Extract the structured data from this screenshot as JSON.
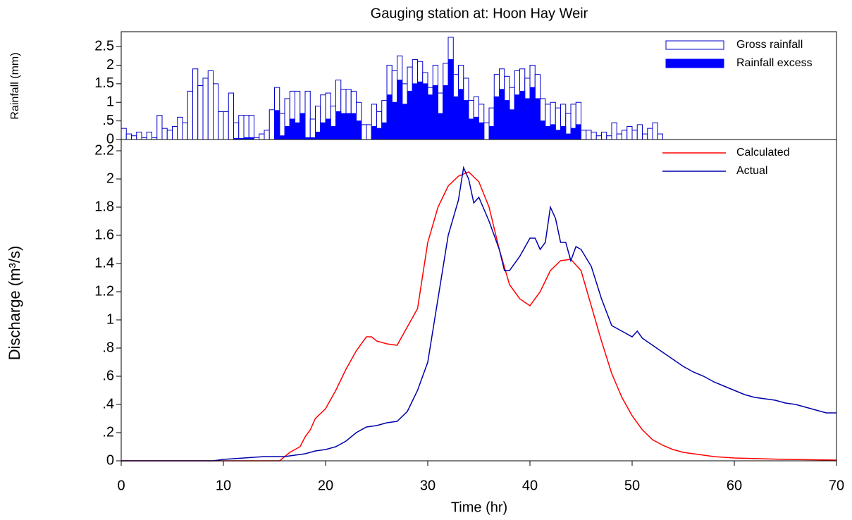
{
  "chart_data": [
    {
      "type": "bar",
      "title": "Gauging station at: Hoon Hay Weir",
      "y_label": "Rainfall (mm)",
      "x": [
        0,
        0.5,
        1,
        1.5,
        2,
        2.5,
        3,
        3.5,
        4,
        4.5,
        5,
        5.5,
        6,
        6.5,
        7,
        7.5,
        8,
        8.5,
        9,
        9.5,
        10,
        10.5,
        11,
        11.5,
        12,
        12.5,
        13,
        13.5,
        14,
        14.5,
        15,
        15.5,
        16,
        16.5,
        17,
        17.5,
        18,
        18.5,
        19,
        19.5,
        20,
        20.5,
        21,
        21.5,
        22,
        22.5,
        23,
        23.5,
        24,
        24.5,
        25,
        25.5,
        26,
        26.5,
        27,
        27.5,
        28,
        28.5,
        29,
        29.5,
        30,
        30.5,
        31,
        31.5,
        32,
        32.5,
        33,
        33.5,
        34,
        34.5,
        35,
        35.5,
        36,
        36.5,
        37,
        37.5,
        38,
        38.5,
        39,
        39.5,
        40,
        40.5,
        41,
        41.5,
        42,
        42.5,
        43,
        43.5,
        44,
        44.5,
        45,
        45.5,
        46,
        46.5,
        47,
        47.5,
        48,
        48.5,
        49,
        49.5,
        50,
        50.5,
        51,
        51.5,
        52,
        52.5
      ],
      "series": [
        {
          "name": "Gross rainfall",
          "color": "#0000cc",
          "fill": "#ffffff",
          "values": [
            0.3,
            0.15,
            0.1,
            0.2,
            0.05,
            0.2,
            0.05,
            0.65,
            0.3,
            0.25,
            0.35,
            0.6,
            0.45,
            1.3,
            1.9,
            1.45,
            1.65,
            1.85,
            1.5,
            0.75,
            0.75,
            1.25,
            0.45,
            0.65,
            0.65,
            0.65,
            0.05,
            0.15,
            0.25,
            0.8,
            1.4,
            0.7,
            1.1,
            1.3,
            1.3,
            0.7,
            1.3,
            0.55,
            0.9,
            1.2,
            1.25,
            0.9,
            1.6,
            1.35,
            1.35,
            1.3,
            1.0,
            0.4,
            0.4,
            0.95,
            0.75,
            1.05,
            2.0,
            1.85,
            2.25,
            1.5,
            1.95,
            2.15,
            2.1,
            1.8,
            1.4,
            2.0,
            1.25,
            2.05,
            2.75,
            1.75,
            2.0,
            1.65,
            1.05,
            1.15,
            0.95,
            0.45,
            0.85,
            1.75,
            1.9,
            1.7,
            1.4,
            1.85,
            1.9,
            1.65,
            2.0,
            1.75,
            1.1,
            0.95,
            1.0,
            0.85,
            0.95,
            0.7,
            0.95,
            1.0,
            0.25,
            0.25,
            0.2,
            0.1,
            0.2,
            0.1,
            0.45,
            0.15,
            0.25,
            0.35,
            0.25,
            0.4,
            0.15,
            0.3,
            0.45,
            0.15
          ]
        },
        {
          "name": "Rainfall excess",
          "color": "#0000ff",
          "fill": "#0000ff",
          "values": [
            0,
            0,
            0,
            0,
            0,
            0,
            0,
            0,
            0,
            0,
            0,
            0,
            0,
            0,
            0,
            0,
            0,
            0,
            0,
            0,
            0,
            0,
            0.03,
            0.03,
            0.05,
            0.05,
            0,
            0,
            0,
            0,
            0.78,
            0.1,
            0.35,
            0.55,
            0.45,
            0.7,
            0.05,
            0.05,
            0.2,
            0.45,
            0.55,
            0.35,
            0.75,
            0.7,
            0.7,
            0.7,
            0.5,
            0,
            0,
            0.35,
            0.3,
            0.45,
            1.2,
            1.0,
            1.6,
            0.95,
            1.3,
            1.5,
            1.55,
            1.5,
            1.2,
            1.45,
            0.7,
            1.45,
            2.15,
            1.15,
            1.35,
            1.05,
            0.55,
            0.6,
            0.45,
            0,
            0.35,
            1.15,
            1.35,
            1.05,
            0.8,
            1.2,
            1.3,
            1.1,
            1.4,
            1.1,
            0.5,
            0.35,
            0.4,
            0.25,
            0.35,
            0.15,
            0.3,
            0.4,
            0,
            0,
            0,
            0,
            0,
            0,
            0,
            0,
            0,
            0,
            0,
            0,
            0,
            0,
            0,
            0
          ]
        }
      ],
      "xlim": [
        0,
        70
      ],
      "ylim": [
        0,
        2.9
      ],
      "yticks": [
        0,
        {
          "value": 0.5,
          "label": ".5"
        },
        1,
        1.5,
        2,
        2.5
      ],
      "legend": "upper right"
    },
    {
      "type": "line",
      "x_label": "Time (hr)",
      "y_label": "Discharge (m³/s)",
      "series": [
        {
          "name": "Calculated",
          "color": "#ff0000",
          "x": [
            0,
            15.5,
            16,
            16.5,
            17,
            17.5,
            18,
            18.5,
            19,
            20,
            21,
            22,
            23,
            24,
            24.5,
            25,
            26,
            27,
            28,
            29,
            30,
            31,
            32,
            33,
            34,
            35,
            36,
            37,
            38,
            39,
            40,
            41,
            42,
            43,
            44,
            45,
            46,
            47,
            48,
            49,
            50,
            51,
            52,
            53,
            54,
            55,
            56,
            58,
            60,
            65,
            70
          ],
          "values": [
            0,
            0,
            0.03,
            0.06,
            0.08,
            0.1,
            0.17,
            0.22,
            0.3,
            0.37,
            0.5,
            0.65,
            0.78,
            0.88,
            0.88,
            0.85,
            0.83,
            0.82,
            0.95,
            1.08,
            1.55,
            1.8,
            1.95,
            2.02,
            2.05,
            1.98,
            1.8,
            1.5,
            1.25,
            1.15,
            1.1,
            1.2,
            1.35,
            1.42,
            1.43,
            1.35,
            1.1,
            0.85,
            0.62,
            0.45,
            0.32,
            0.22,
            0.15,
            0.11,
            0.08,
            0.06,
            0.05,
            0.03,
            0.02,
            0.01,
            0.005
          ]
        },
        {
          "name": "Actual",
          "color": "#0000aa",
          "x": [
            0,
            9,
            10,
            12,
            14,
            16,
            17,
            18,
            19,
            20,
            21,
            22,
            23,
            24,
            25,
            26,
            27,
            28,
            29,
            30,
            31,
            32,
            33,
            33.5,
            34,
            34.5,
            35,
            36,
            37,
            37.5,
            38,
            39,
            40,
            40.5,
            41,
            41.5,
            42,
            42.5,
            43,
            43.5,
            44,
            44.5,
            45,
            46,
            47,
            48,
            49,
            50,
            50.5,
            51,
            52,
            53,
            54,
            55,
            56,
            57,
            58,
            59,
            60,
            61,
            62,
            63,
            64,
            65,
            66,
            67,
            68,
            69,
            70
          ],
          "values": [
            0,
            0,
            0.01,
            0.02,
            0.03,
            0.03,
            0.04,
            0.05,
            0.07,
            0.08,
            0.1,
            0.14,
            0.2,
            0.24,
            0.25,
            0.27,
            0.28,
            0.35,
            0.5,
            0.7,
            1.15,
            1.6,
            1.85,
            2.08,
            2.0,
            1.83,
            1.87,
            1.7,
            1.5,
            1.35,
            1.35,
            1.45,
            1.58,
            1.58,
            1.5,
            1.55,
            1.8,
            1.72,
            1.55,
            1.55,
            1.42,
            1.52,
            1.5,
            1.38,
            1.15,
            0.96,
            0.92,
            0.88,
            0.92,
            0.87,
            0.82,
            0.77,
            0.72,
            0.67,
            0.63,
            0.6,
            0.56,
            0.53,
            0.5,
            0.47,
            0.45,
            0.44,
            0.43,
            0.41,
            0.4,
            0.38,
            0.36,
            0.34,
            0.34
          ]
        }
      ],
      "xlim": [
        0,
        70
      ],
      "xticks": [
        0,
        10,
        20,
        30,
        40,
        50,
        60,
        70
      ],
      "ylim": [
        0,
        2.28
      ],
      "yticks": [
        0,
        {
          "value": 0.2,
          "label": ".2"
        },
        {
          "value": 0.4,
          "label": ".4"
        },
        {
          "value": 0.6,
          "label": ".6"
        },
        {
          "value": 0.8,
          "label": ".8"
        },
        1,
        1.2,
        1.4,
        1.6,
        1.8,
        2,
        2.2
      ],
      "legend": "upper right"
    }
  ]
}
